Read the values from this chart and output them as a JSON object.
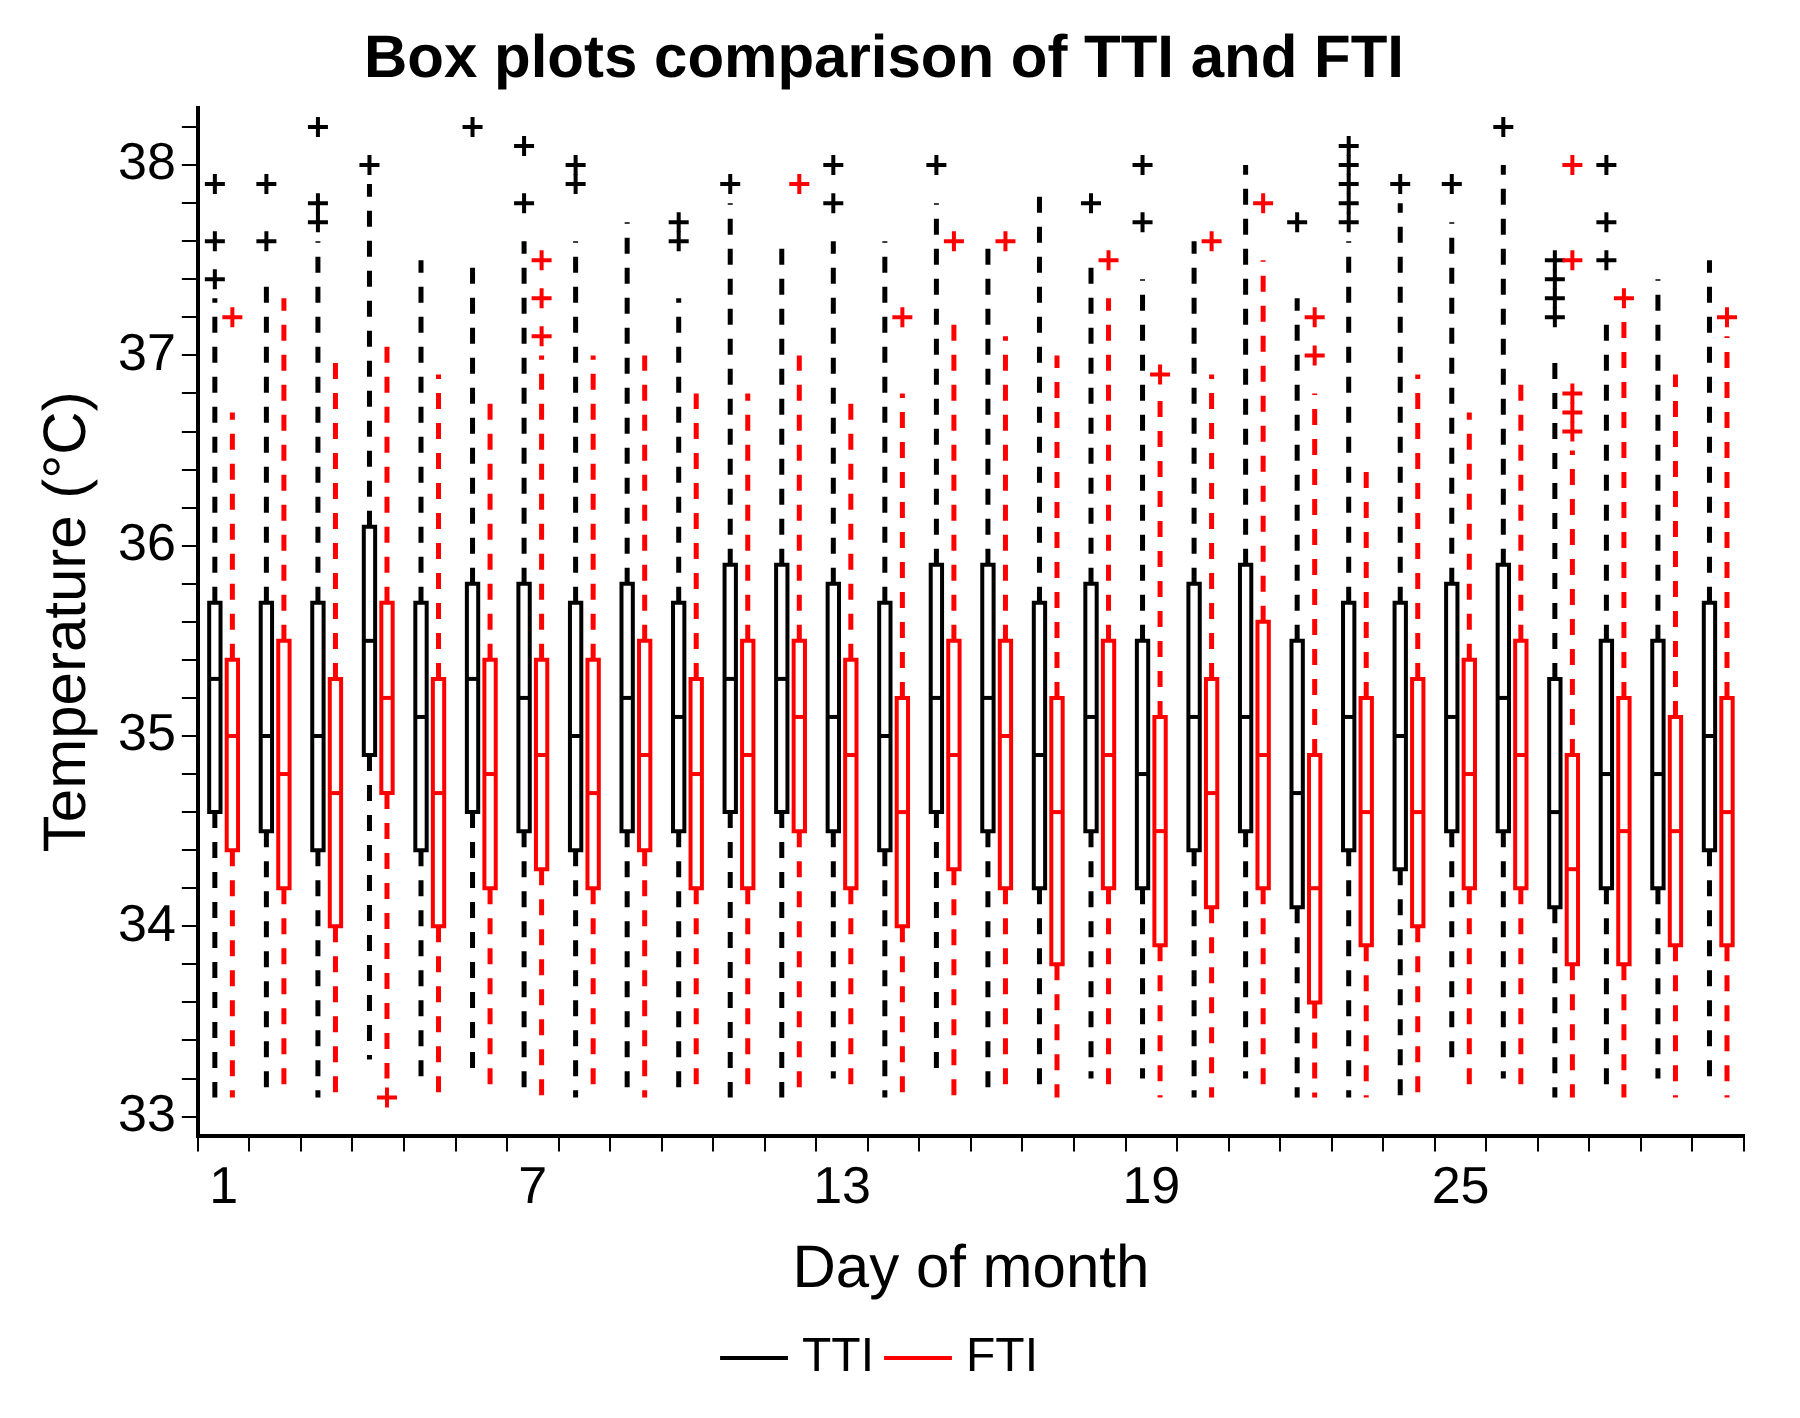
{
  "chart_data": {
    "type": "box",
    "title": "Box plots comparison of TTI and FTI",
    "xlabel": "Day of month",
    "ylabel": "Temperature (°C)",
    "categories": [
      "1",
      null,
      null,
      null,
      null,
      null,
      "7",
      null,
      null,
      null,
      null,
      null,
      "13",
      null,
      null,
      null,
      null,
      null,
      "19",
      null,
      null,
      null,
      null,
      null,
      "25",
      null,
      null,
      null,
      null,
      null
    ],
    "ylim": [
      32.9,
      38.3
    ],
    "yticks": [
      33,
      {
        "value": 33.2,
        "label": null
      },
      {
        "value": 33.4,
        "label": null
      },
      {
        "value": 33.6,
        "label": null
      },
      {
        "value": 33.8,
        "label": null
      },
      34,
      {
        "value": 34.2,
        "label": null
      },
      {
        "value": 34.4,
        "label": null
      },
      {
        "value": 34.6,
        "label": null
      },
      {
        "value": 34.8,
        "label": null
      },
      35,
      {
        "value": 35.2,
        "label": null
      },
      {
        "value": 35.4,
        "label": null
      },
      {
        "value": 35.6,
        "label": null
      },
      {
        "value": 35.8,
        "label": null
      },
      36,
      {
        "value": 36.2,
        "label": null
      },
      {
        "value": 36.4,
        "label": null
      },
      {
        "value": 36.6,
        "label": null
      },
      {
        "value": 36.8,
        "label": null
      },
      37,
      {
        "value": 37.2,
        "label": null
      },
      {
        "value": 37.4,
        "label": null
      },
      {
        "value": 37.6,
        "label": null
      },
      {
        "value": 37.8,
        "label": null
      },
      38,
      {
        "value": 38.2,
        "label": null
      }
    ],
    "grid": false,
    "legend": "bottom",
    "series": [
      {
        "name": "TTI",
        "color": "#000000",
        "boxes": [
          {
            "low": 33.1,
            "q1": 34.6,
            "median": 35.3,
            "q3": 35.7,
            "high": 37.3,
            "outliers": [
              37.9,
              37.6,
              37.4
            ]
          },
          {
            "low": 33.1,
            "q1": 34.5,
            "median": 35.0,
            "q3": 35.7,
            "high": 37.4,
            "outliers": [
              37.9,
              37.6
            ]
          },
          {
            "low": 33.1,
            "q1": 34.4,
            "median": 35.0,
            "q3": 35.7,
            "high": 37.6,
            "outliers": [
              38.2,
              37.8,
              37.7
            ]
          },
          {
            "low": 33.3,
            "q1": 34.9,
            "median": 35.5,
            "q3": 36.1,
            "high": 37.9,
            "outliers": [
              38.0
            ]
          },
          {
            "low": 33.2,
            "q1": 34.4,
            "median": 35.1,
            "q3": 35.7,
            "high": 37.5
          },
          {
            "low": 33.2,
            "q1": 34.6,
            "median": 35.3,
            "q3": 35.8,
            "high": 37.5,
            "outliers": [
              38.2
            ]
          },
          {
            "low": 33.1,
            "q1": 34.5,
            "median": 35.2,
            "q3": 35.8,
            "high": 37.6,
            "outliers": [
              38.1,
              37.8
            ]
          },
          {
            "low": 33.1,
            "q1": 34.4,
            "median": 35.0,
            "q3": 35.7,
            "high": 37.6,
            "outliers": [
              38.0,
              37.9
            ]
          },
          {
            "low": 33.1,
            "q1": 34.5,
            "median": 35.2,
            "q3": 35.8,
            "high": 37.7
          },
          {
            "low": 33.1,
            "q1": 34.5,
            "median": 35.1,
            "q3": 35.7,
            "high": 37.3,
            "outliers": [
              37.7,
              37.6
            ]
          },
          {
            "low": 33.1,
            "q1": 34.6,
            "median": 35.3,
            "q3": 35.9,
            "high": 37.8,
            "outliers": [
              37.9
            ]
          },
          {
            "low": 33.1,
            "q1": 34.6,
            "median": 35.3,
            "q3": 35.9,
            "high": 37.6
          },
          {
            "low": 33.2,
            "q1": 34.5,
            "median": 35.1,
            "q3": 35.8,
            "high": 37.6,
            "outliers": [
              38.0,
              37.8
            ]
          },
          {
            "low": 33.1,
            "q1": 34.4,
            "median": 35.0,
            "q3": 35.7,
            "high": 37.6
          },
          {
            "low": 33.2,
            "q1": 34.6,
            "median": 35.2,
            "q3": 35.9,
            "high": 37.8,
            "outliers": [
              38.0
            ]
          },
          {
            "low": 33.1,
            "q1": 34.5,
            "median": 35.2,
            "q3": 35.9,
            "high": 37.6
          },
          {
            "low": 33.1,
            "q1": 34.2,
            "median": 34.9,
            "q3": 35.7,
            "high": 37.9
          },
          {
            "low": 33.2,
            "q1": 34.5,
            "median": 35.1,
            "q3": 35.8,
            "high": 37.5,
            "outliers": [
              37.8
            ]
          },
          {
            "low": 33.2,
            "q1": 34.2,
            "median": 34.8,
            "q3": 35.5,
            "high": 37.4,
            "outliers": [
              38.0,
              37.7
            ]
          },
          {
            "low": 33.1,
            "q1": 34.4,
            "median": 35.1,
            "q3": 35.8,
            "high": 37.6
          },
          {
            "low": 33.2,
            "q1": 34.5,
            "median": 35.1,
            "q3": 35.9,
            "high": 38.0
          },
          {
            "low": 33.1,
            "q1": 34.1,
            "median": 34.7,
            "q3": 35.5,
            "high": 37.3,
            "outliers": [
              37.7
            ]
          },
          {
            "low": 33.1,
            "q1": 34.4,
            "median": 35.1,
            "q3": 35.7,
            "high": 37.6,
            "outliers": [
              38.1,
              38.0,
              37.9,
              37.8,
              37.7
            ]
          },
          {
            "low": 33.1,
            "q1": 34.3,
            "median": 35.0,
            "q3": 35.7,
            "high": 37.8,
            "outliers": [
              37.9
            ]
          },
          {
            "low": 33.3,
            "q1": 34.5,
            "median": 35.1,
            "q3": 35.8,
            "high": 37.7,
            "outliers": [
              37.9
            ]
          },
          {
            "low": 33.2,
            "q1": 34.5,
            "median": 35.2,
            "q3": 35.9,
            "high": 38.0,
            "outliers": [
              38.2
            ]
          },
          {
            "low": 33.1,
            "q1": 34.1,
            "median": 34.6,
            "q3": 35.3,
            "high": 37.0,
            "outliers": [
              37.5,
              37.4,
              37.3,
              37.2
            ]
          },
          {
            "low": 33.1,
            "q1": 34.2,
            "median": 34.8,
            "q3": 35.5,
            "high": 37.2,
            "outliers": [
              38.0,
              37.7,
              37.5
            ]
          },
          {
            "low": 33.2,
            "q1": 34.2,
            "median": 34.8,
            "q3": 35.5,
            "high": 37.4
          },
          {
            "low": 33.2,
            "q1": 34.4,
            "median": 35.0,
            "q3": 35.7,
            "high": 37.5
          }
        ]
      },
      {
        "name": "FTI",
        "color": "#ff0000",
        "boxes": [
          {
            "low": 33.1,
            "q1": 34.4,
            "median": 35.0,
            "q3": 35.4,
            "high": 36.7,
            "outliers": [
              37.2
            ]
          },
          {
            "low": 33.1,
            "q1": 34.2,
            "median": 34.8,
            "q3": 35.5,
            "high": 37.3
          },
          {
            "low": 33.1,
            "q1": 34.0,
            "median": 34.7,
            "q3": 35.3,
            "high": 37.0
          },
          {
            "low": 33.2,
            "q1": 34.7,
            "median": 35.2,
            "q3": 35.7,
            "high": 37.1,
            "outliers": [
              33.1
            ]
          },
          {
            "low": 33.1,
            "q1": 34.0,
            "median": 34.7,
            "q3": 35.3,
            "high": 36.9
          },
          {
            "low": 33.1,
            "q1": 34.2,
            "median": 34.8,
            "q3": 35.4,
            "high": 36.8
          },
          {
            "low": 33.1,
            "q1": 34.3,
            "median": 34.9,
            "q3": 35.4,
            "high": 37.0,
            "outliers": [
              37.5,
              37.3,
              37.1
            ]
          },
          {
            "low": 33.1,
            "q1": 34.2,
            "median": 34.7,
            "q3": 35.4,
            "high": 37.0
          },
          {
            "low": 33.1,
            "q1": 34.4,
            "median": 34.9,
            "q3": 35.5,
            "high": 37.0
          },
          {
            "low": 33.1,
            "q1": 34.2,
            "median": 34.8,
            "q3": 35.3,
            "high": 36.8
          },
          {
            "low": 33.1,
            "q1": 34.2,
            "median": 34.9,
            "q3": 35.5,
            "high": 36.8
          },
          {
            "low": 33.1,
            "q1": 34.5,
            "median": 35.1,
            "q3": 35.5,
            "high": 37.0,
            "outliers": [
              37.9
            ]
          },
          {
            "low": 33.1,
            "q1": 34.2,
            "median": 34.9,
            "q3": 35.4,
            "high": 36.8
          },
          {
            "low": 33.1,
            "q1": 34.0,
            "median": 34.6,
            "q3": 35.2,
            "high": 36.8,
            "outliers": [
              37.2
            ]
          },
          {
            "low": 33.1,
            "q1": 34.3,
            "median": 34.9,
            "q3": 35.5,
            "high": 37.2,
            "outliers": [
              37.6
            ]
          },
          {
            "low": 33.1,
            "q1": 34.2,
            "median": 35.0,
            "q3": 35.5,
            "high": 37.1,
            "outliers": [
              37.6
            ]
          },
          {
            "low": 33.1,
            "q1": 33.8,
            "median": 34.6,
            "q3": 35.2,
            "high": 37.0
          },
          {
            "low": 33.1,
            "q1": 34.2,
            "median": 34.9,
            "q3": 35.5,
            "high": 37.3,
            "outliers": [
              37.5
            ]
          },
          {
            "low": 33.1,
            "q1": 33.9,
            "median": 34.5,
            "q3": 35.1,
            "high": 36.8,
            "outliers": [
              36.9
            ]
          },
          {
            "low": 33.1,
            "q1": 34.1,
            "median": 34.7,
            "q3": 35.3,
            "high": 36.9,
            "outliers": [
              37.6
            ]
          },
          {
            "low": 33.1,
            "q1": 34.2,
            "median": 34.9,
            "q3": 35.6,
            "high": 37.5,
            "outliers": [
              37.8
            ]
          },
          {
            "low": 33.1,
            "q1": 33.6,
            "median": 34.2,
            "q3": 34.9,
            "high": 36.8,
            "outliers": [
              37.2,
              37.0
            ]
          },
          {
            "low": 33.1,
            "q1": 33.9,
            "median": 34.6,
            "q3": 35.2,
            "high": 36.4
          },
          {
            "low": 33.1,
            "q1": 34.0,
            "median": 34.6,
            "q3": 35.3,
            "high": 36.9
          },
          {
            "low": 33.1,
            "q1": 34.2,
            "median": 34.8,
            "q3": 35.4,
            "high": 36.7
          },
          {
            "low": 33.1,
            "q1": 34.2,
            "median": 34.9,
            "q3": 35.5,
            "high": 36.9
          },
          {
            "low": 33.1,
            "q1": 33.8,
            "median": 34.3,
            "q3": 34.9,
            "high": 36.5,
            "outliers": [
              38.0,
              37.5,
              36.8,
              36.7,
              36.6
            ]
          },
          {
            "low": 33.1,
            "q1": 33.8,
            "median": 34.5,
            "q3": 35.2,
            "high": 37.2,
            "outliers": [
              37.3
            ]
          },
          {
            "low": 33.1,
            "q1": 33.9,
            "median": 34.5,
            "q3": 35.1,
            "high": 36.9
          },
          {
            "low": 33.1,
            "q1": 33.9,
            "median": 34.6,
            "q3": 35.2,
            "high": 37.1,
            "outliers": [
              37.2
            ]
          }
        ]
      }
    ]
  }
}
